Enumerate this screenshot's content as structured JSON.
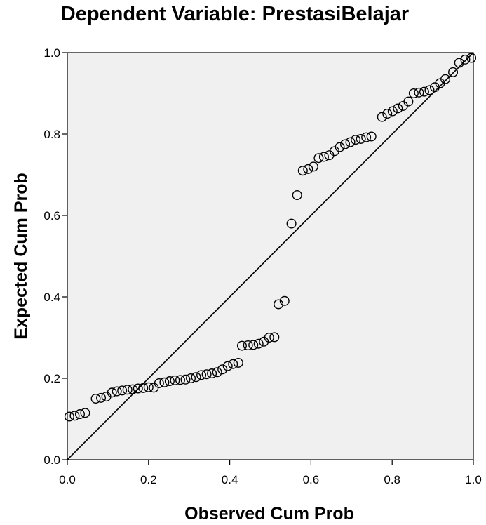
{
  "chart_data": {
    "type": "scatter",
    "title": "Dependent Variable: PrestasiBelajar",
    "xlabel": "Observed Cum Prob",
    "ylabel": "Expected Cum Prob",
    "xlim": [
      0.0,
      1.0
    ],
    "ylim": [
      0.0,
      1.0
    ],
    "xticks": [
      "0.0",
      "0.2",
      "0.4",
      "0.6",
      "0.8",
      "1.0"
    ],
    "yticks": [
      "0.0",
      "0.2",
      "0.4",
      "0.6",
      "0.8",
      "1.0"
    ],
    "reference_line": [
      [
        0.0,
        0.0
      ],
      [
        1.0,
        1.0
      ]
    ],
    "plot_background": "#f0f0f0",
    "grid": false,
    "points": [
      [
        0.005,
        0.106
      ],
      [
        0.018,
        0.108
      ],
      [
        0.031,
        0.112
      ],
      [
        0.044,
        0.115
      ],
      [
        0.07,
        0.15
      ],
      [
        0.083,
        0.152
      ],
      [
        0.096,
        0.155
      ],
      [
        0.11,
        0.165
      ],
      [
        0.122,
        0.168
      ],
      [
        0.135,
        0.17
      ],
      [
        0.148,
        0.172
      ],
      [
        0.161,
        0.173
      ],
      [
        0.174,
        0.175
      ],
      [
        0.187,
        0.176
      ],
      [
        0.2,
        0.178
      ],
      [
        0.213,
        0.177
      ],
      [
        0.226,
        0.188
      ],
      [
        0.239,
        0.19
      ],
      [
        0.252,
        0.193
      ],
      [
        0.265,
        0.195
      ],
      [
        0.278,
        0.196
      ],
      [
        0.291,
        0.197
      ],
      [
        0.304,
        0.2
      ],
      [
        0.317,
        0.203
      ],
      [
        0.33,
        0.208
      ],
      [
        0.343,
        0.21
      ],
      [
        0.356,
        0.212
      ],
      [
        0.369,
        0.215
      ],
      [
        0.382,
        0.222
      ],
      [
        0.395,
        0.23
      ],
      [
        0.408,
        0.235
      ],
      [
        0.421,
        0.238
      ],
      [
        0.43,
        0.28
      ],
      [
        0.445,
        0.281
      ],
      [
        0.458,
        0.282
      ],
      [
        0.471,
        0.285
      ],
      [
        0.484,
        0.29
      ],
      [
        0.497,
        0.3
      ],
      [
        0.51,
        0.301
      ],
      [
        0.52,
        0.382
      ],
      [
        0.535,
        0.39
      ],
      [
        0.552,
        0.58
      ],
      [
        0.566,
        0.65
      ],
      [
        0.58,
        0.71
      ],
      [
        0.593,
        0.714
      ],
      [
        0.606,
        0.72
      ],
      [
        0.619,
        0.741
      ],
      [
        0.632,
        0.744
      ],
      [
        0.645,
        0.748
      ],
      [
        0.658,
        0.758
      ],
      [
        0.671,
        0.768
      ],
      [
        0.684,
        0.775
      ],
      [
        0.697,
        0.78
      ],
      [
        0.71,
        0.786
      ],
      [
        0.723,
        0.788
      ],
      [
        0.736,
        0.792
      ],
      [
        0.749,
        0.794
      ],
      [
        0.775,
        0.842
      ],
      [
        0.788,
        0.85
      ],
      [
        0.801,
        0.856
      ],
      [
        0.814,
        0.863
      ],
      [
        0.827,
        0.869
      ],
      [
        0.84,
        0.88
      ],
      [
        0.853,
        0.9
      ],
      [
        0.866,
        0.902
      ],
      [
        0.879,
        0.904
      ],
      [
        0.892,
        0.908
      ],
      [
        0.905,
        0.915
      ],
      [
        0.918,
        0.925
      ],
      [
        0.931,
        0.935
      ],
      [
        0.95,
        0.952
      ],
      [
        0.965,
        0.975
      ],
      [
        0.98,
        0.983
      ],
      [
        0.995,
        0.987
      ]
    ]
  }
}
